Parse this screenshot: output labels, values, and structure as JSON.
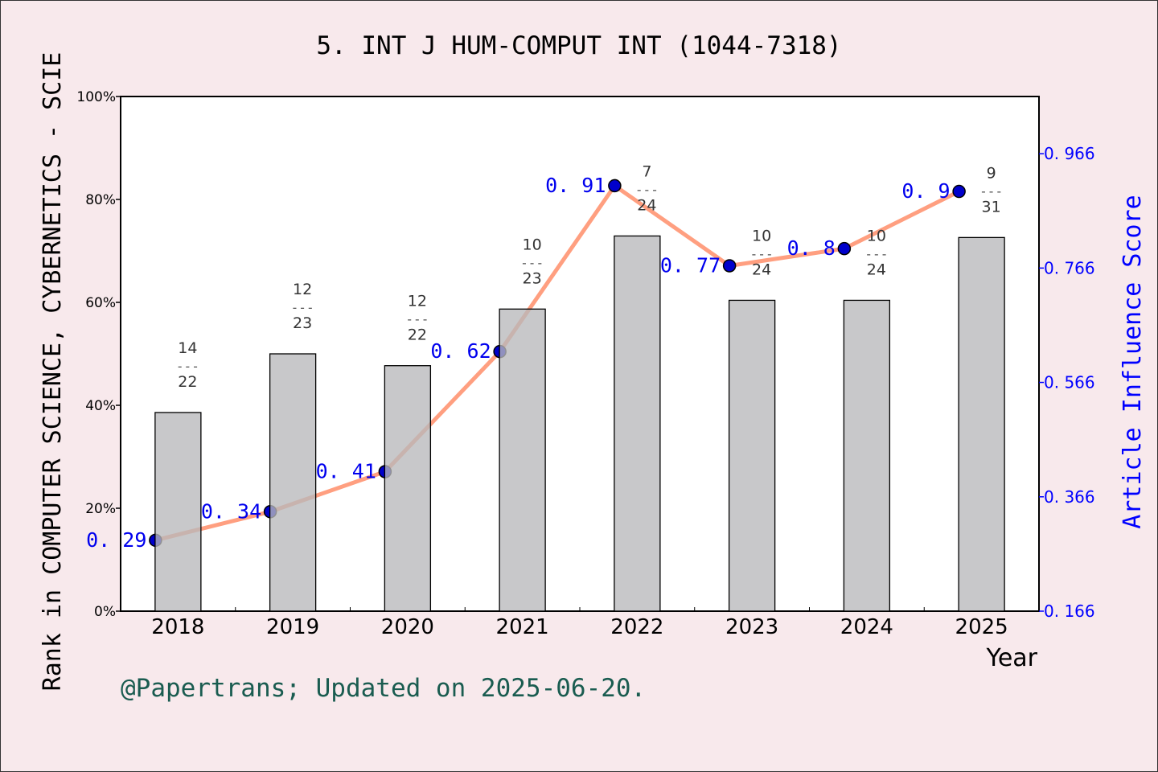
{
  "chart_data": {
    "type": "bar+line",
    "title": "5.  INT J HUM-COMPUT INT (1044-7318)",
    "xlabel": "Year",
    "ylabel_left": "Rank in COMPUTER SCIENCE, CYBERNETICS - SCIE",
    "ylabel_right": "Article Influence Score",
    "categories": [
      "2018",
      "2019",
      "2020",
      "2021",
      "2022",
      "2023",
      "2024",
      "2025"
    ],
    "left_ylim": [
      0,
      100
    ],
    "left_ticks": [
      "0%",
      "20%",
      "40%",
      "60%",
      "80%",
      "100%"
    ],
    "right_ylim": [
      0.166,
      1.066
    ],
    "right_ticks": [
      "0.166",
      "0.366",
      "0.566",
      "0.766",
      "0.966"
    ],
    "ranks": [
      [
        14,
        22
      ],
      [
        12,
        23
      ],
      [
        12,
        22
      ],
      [
        10,
        23
      ],
      [
        7,
        24
      ],
      [
        10,
        24
      ],
      [
        10,
        24
      ],
      [
        9,
        31
      ]
    ],
    "bar_percentile": [
      38.6,
      50.0,
      47.7,
      58.7,
      72.9,
      60.4,
      60.4,
      72.6
    ],
    "scores": [
      0.29,
      0.34,
      0.41,
      0.62,
      0.91,
      0.77,
      0.8,
      0.9
    ],
    "score_labels": [
      "0.29",
      "0.34",
      "0.41",
      "0.62",
      "0.91",
      "0.77",
      "0.8",
      "0.9"
    ],
    "colors": {
      "bar": "#b8b9bb",
      "line": "#ff9f80",
      "point": "#0000cc",
      "score_text": "#0000ee",
      "right_axis": "#0000ff",
      "footer": "#1a5c50",
      "background": "#f8e9ec"
    }
  },
  "footer": "@Papertrans; Updated on 2025-06-20."
}
